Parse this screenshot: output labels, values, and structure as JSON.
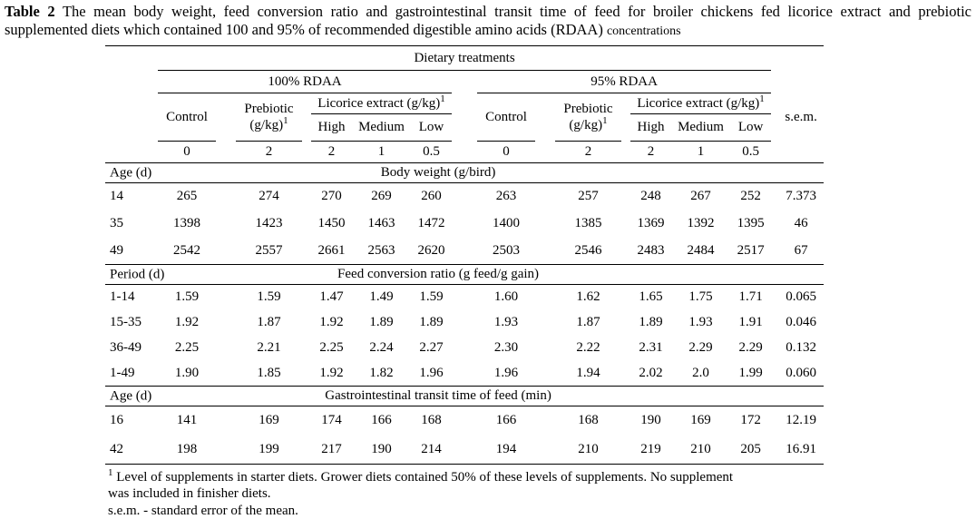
{
  "caption": {
    "label": "Table 2",
    "line1_rest": "The mean body weight, feed conversion ratio and gastrointestinal transit time of feed for broiler chickens fed licorice extract and prebiotic",
    "line2": "supplemented diets which contained 100 and 95% of recommended digestible amino acids (RDAA)",
    "line2_small": "concentrations"
  },
  "table": {
    "dietary_treatments_header": "Dietary treatments",
    "group_100": "100% RDAA",
    "group_95": "95% RDAA",
    "control_label": "Control",
    "prebiotic_label": "Prebiotic",
    "prebiotic_unit": "(g/kg)",
    "licorice_label": "Licorice extract (g/kg)",
    "footnote_marker": "1",
    "sub_headers": [
      "High",
      "Medium",
      "Low"
    ],
    "sem_label": "s.e.m.",
    "doses": [
      "0",
      "2",
      "2",
      "1",
      "0.5",
      "0",
      "2",
      "2",
      "1",
      "0.5"
    ],
    "sections": [
      {
        "row_header": "Age (d)",
        "title": "Body weight (g/bird)",
        "rows": [
          {
            "label": "14",
            "values": [
              "265",
              "274",
              "270",
              "269",
              "260",
              "263",
              "257",
              "248",
              "267",
              "252"
            ],
            "sem": "7.373"
          },
          {
            "label": "35",
            "values": [
              "1398",
              "1423",
              "1450",
              "1463",
              "1472",
              "1400",
              "1385",
              "1369",
              "1392",
              "1395"
            ],
            "sem": "46"
          },
          {
            "label": "49",
            "values": [
              "2542",
              "2557",
              "2661",
              "2563",
              "2620",
              "2503",
              "2546",
              "2483",
              "2484",
              "2517"
            ],
            "sem": "67"
          }
        ]
      },
      {
        "row_header": "Period (d)",
        "title": "Feed conversion ratio (g feed/g gain)",
        "rows": [
          {
            "label": "1-14",
            "values": [
              "1.59",
              "1.59",
              "1.47",
              "1.49",
              "1.59",
              "1.60",
              "1.62",
              "1.65",
              "1.75",
              "1.71"
            ],
            "sem": "0.065"
          },
          {
            "label": "15-35",
            "values": [
              "1.92",
              "1.87",
              "1.92",
              "1.89",
              "1.89",
              "1.93",
              "1.87",
              "1.89",
              "1.93",
              "1.91"
            ],
            "sem": "0.046"
          },
          {
            "label": "36-49",
            "values": [
              "2.25",
              "2.21",
              "2.25",
              "2.24",
              "2.27",
              "2.30",
              "2.22",
              "2.31",
              "2.29",
              "2.29"
            ],
            "sem": "0.132"
          },
          {
            "label": "1-49",
            "values": [
              "1.90",
              "1.85",
              "1.92",
              "1.82",
              "1.96",
              "1.96",
              "1.94",
              "2.02",
              "2.0",
              "1.99"
            ],
            "sem": "0.060"
          }
        ]
      },
      {
        "row_header": "Age (d)",
        "title": "Gastrointestinal transit time of feed (min)",
        "rows": [
          {
            "label": "16",
            "values": [
              "141",
              "169",
              "174",
              "166",
              "168",
              "166",
              "168",
              "190",
              "169",
              "172"
            ],
            "sem": "12.19"
          },
          {
            "label": "42",
            "values": [
              "198",
              "199",
              "217",
              "190",
              "214",
              "194",
              "210",
              "219",
              "210",
              "205"
            ],
            "sem": "16.91"
          }
        ]
      }
    ]
  },
  "footnotes": {
    "marker": "1",
    "line1": "Level of supplements in starter diets. Grower diets contained 50% of these levels of supplements. No supplement",
    "line2": "was included in finisher diets.",
    "line3": "s.e.m. - standard error of the mean."
  }
}
